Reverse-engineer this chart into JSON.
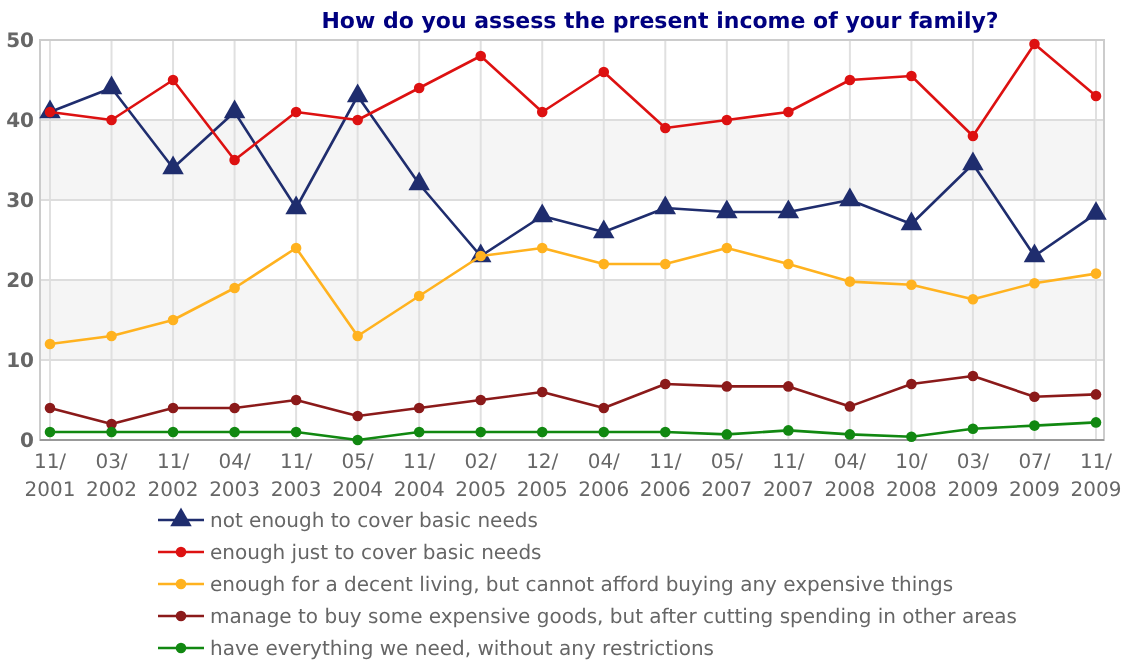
{
  "chart_data": {
    "type": "line",
    "title": "How do you assess the present income of your family?",
    "categories": [
      "11/2001",
      "03/2002",
      "11/2002",
      "04/2003",
      "11/2003",
      "05/2004",
      "11/2004",
      "02/2005",
      "12/2005",
      "04/2006",
      "11/2006",
      "05/2007",
      "11/2007",
      "04/2008",
      "10/2008",
      "03/2009",
      "07/2009",
      "11/2009"
    ],
    "series": [
      {
        "name": "not enough to cover basic needs",
        "color": "#1f2d6e",
        "marker": "triangle",
        "values": [
          41,
          44,
          34,
          41,
          29,
          43,
          32,
          23,
          28,
          26,
          29,
          28.5,
          28.5,
          30,
          27,
          34.5,
          23,
          28.3
        ]
      },
      {
        "name": "enough just to cover basic needs",
        "color": "#dd1111",
        "marker": "circle",
        "values": [
          41,
          40,
          45,
          35,
          41,
          40,
          44,
          48,
          41,
          46,
          39,
          40,
          41,
          45,
          45.5,
          38,
          49.5,
          43
        ]
      },
      {
        "name": "enough for a decent living, but cannot afford buying any expensive things",
        "color": "#ffb21f",
        "marker": "circle",
        "values": [
          12,
          13,
          15,
          19,
          24,
          13,
          18,
          23,
          24,
          22,
          22,
          24,
          22,
          19.8,
          19.4,
          17.6,
          19.6,
          20.8
        ]
      },
      {
        "name": "manage to buy some expensive goods, but after cutting spending in other areas",
        "color": "#8b1a1a",
        "marker": "circle",
        "values": [
          4,
          2,
          4,
          4,
          5,
          3,
          4,
          5,
          6,
          4,
          7,
          6.7,
          6.7,
          4.2,
          7,
          8,
          5.4,
          5.7
        ]
      },
      {
        "name": "have everything we need, without any restrictions",
        "color": "#118811",
        "marker": "circle",
        "values": [
          1,
          1,
          1,
          1,
          1,
          0,
          1,
          1,
          1,
          1,
          1,
          0.7,
          1.2,
          0.7,
          0.4,
          1.4,
          1.8,
          2.2
        ]
      }
    ],
    "ylim": [
      0,
      50
    ],
    "yticks": [
      0,
      10,
      20,
      30,
      40,
      50
    ],
    "grid": true,
    "legend": "bottom",
    "line_style": "solid"
  }
}
